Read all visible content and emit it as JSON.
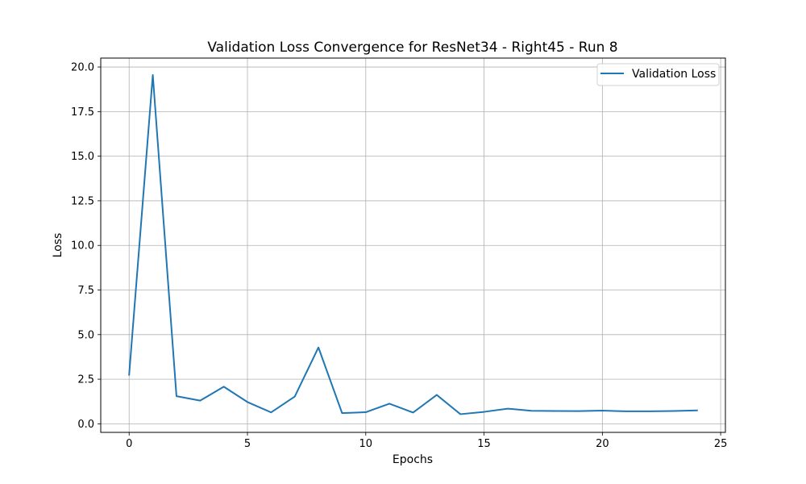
{
  "chart_data": {
    "type": "line",
    "title": "Validation Loss Convergence for ResNet34 - Right45 - Run 8",
    "xlabel": "Epochs",
    "ylabel": "Loss",
    "xlim": [
      -1.2,
      25.2
    ],
    "ylim": [
      -0.48,
      20.5
    ],
    "xticks": [
      0,
      5,
      10,
      15,
      20,
      25
    ],
    "xtick_labels": [
      "0",
      "5",
      "10",
      "15",
      "20",
      "25"
    ],
    "yticks": [
      0,
      2.5,
      5,
      7.5,
      10,
      12.5,
      15,
      17.5,
      20
    ],
    "ytick_labels": [
      "0.0",
      "2.5",
      "5.0",
      "7.5",
      "10.0",
      "12.5",
      "15.0",
      "17.5",
      "20.0"
    ],
    "grid": true,
    "legend_position": "upper-right",
    "series": [
      {
        "name": "Validation Loss",
        "color": "#1f77b4",
        "x": [
          0,
          1,
          2,
          3,
          4,
          5,
          6,
          7,
          8,
          9,
          10,
          11,
          12,
          13,
          14,
          15,
          16,
          17,
          18,
          19,
          20,
          21,
          22,
          23,
          24
        ],
        "y": [
          2.75,
          19.55,
          1.55,
          1.3,
          2.08,
          1.22,
          0.64,
          1.53,
          4.28,
          0.6,
          0.65,
          1.13,
          0.63,
          1.62,
          0.54,
          0.67,
          0.85,
          0.73,
          0.72,
          0.71,
          0.74,
          0.7,
          0.7,
          0.72,
          0.75
        ]
      }
    ]
  }
}
